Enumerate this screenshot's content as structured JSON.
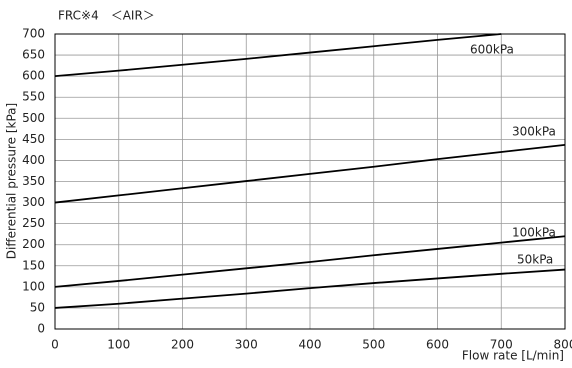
{
  "chart_data": {
    "type": "line",
    "title": "FRC※4　＜AIR＞",
    "x_label": "Flow rate  [L/min]",
    "y_label": "Differential pressure  [kPa]",
    "x": [
      0,
      100,
      200,
      300,
      400,
      500,
      600,
      700,
      800
    ],
    "series": [
      {
        "name": "600kPa",
        "color": "#000000",
        "values": [
          600,
          613,
          627,
          641,
          656,
          671,
          686,
          700,
          null
        ]
      },
      {
        "name": "300kPa",
        "color": "#000000",
        "values": [
          300,
          317,
          334,
          351,
          368,
          385,
          403,
          420,
          437
        ]
      },
      {
        "name": "100kPa",
        "color": "#000000",
        "values": [
          100,
          114,
          129,
          144,
          159,
          175,
          190,
          205,
          220
        ]
      },
      {
        "name": "50kPa",
        "color": "#000000",
        "values": [
          50,
          60,
          72,
          84,
          97,
          109,
          120,
          131,
          141
        ]
      }
    ],
    "xlim": [
      0,
      800
    ],
    "ylim": [
      0,
      700
    ],
    "xticks": [
      0,
      100,
      200,
      300,
      400,
      500,
      600,
      700,
      800
    ],
    "yticks": [
      0,
      50,
      100,
      150,
      200,
      250,
      300,
      350,
      400,
      450,
      500,
      550,
      600,
      650,
      700
    ],
    "grid": true
  }
}
